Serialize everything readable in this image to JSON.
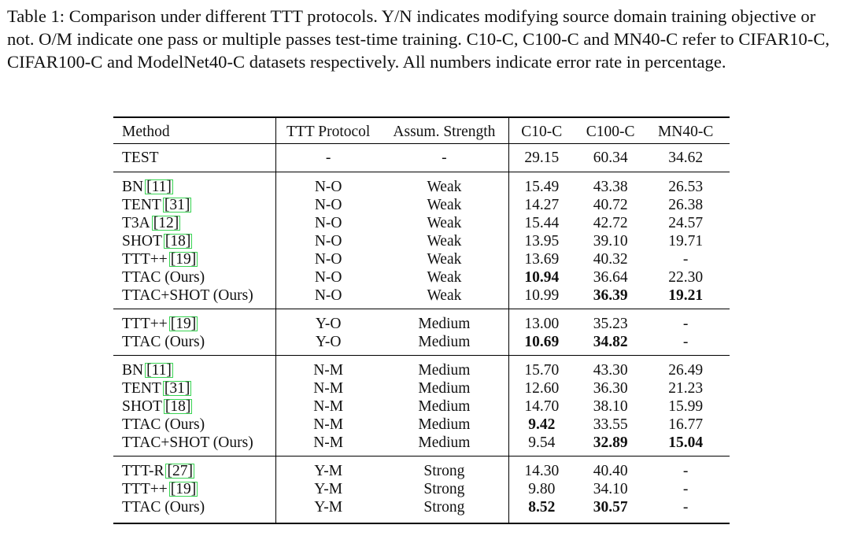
{
  "caption": "Table 1: Comparison under different TTT protocols. Y/N indicates modifying source domain training objective or not. O/M indicate one pass or multiple passes test-time training. C10-C, C100-C and MN40-C refer to CIFAR10-C, CIFAR100-C and ModelNet40-C datasets respectively. All numbers indicate error rate in percentage.",
  "headers": [
    "Method",
    "TTT Protocol",
    "Assum. Strength",
    "C10-C",
    "C100-C",
    "MN40-C"
  ],
  "groups": [
    [
      {
        "method": "TEST",
        "ref": "",
        "protocol": "-",
        "strength": "-",
        "c10": "29.15",
        "c100": "60.34",
        "mn40": "34.62",
        "bold": []
      }
    ],
    [
      {
        "method": "BN",
        "ref": "[11]",
        "protocol": "N-O",
        "strength": "Weak",
        "c10": "15.49",
        "c100": "43.38",
        "mn40": "26.53",
        "bold": []
      },
      {
        "method": "TENT",
        "ref": "[31]",
        "protocol": "N-O",
        "strength": "Weak",
        "c10": "14.27",
        "c100": "40.72",
        "mn40": "26.38",
        "bold": []
      },
      {
        "method": "T3A",
        "ref": "[12]",
        "protocol": "N-O",
        "strength": "Weak",
        "c10": "15.44",
        "c100": "42.72",
        "mn40": "24.57",
        "bold": []
      },
      {
        "method": "SHOT",
        "ref": "[18]",
        "protocol": "N-O",
        "strength": "Weak",
        "c10": "13.95",
        "c100": "39.10",
        "mn40": "19.71",
        "bold": []
      },
      {
        "method": "TTT++",
        "ref": "[19]",
        "protocol": "N-O",
        "strength": "Weak",
        "c10": "13.69",
        "c100": "40.32",
        "mn40": "-",
        "bold": []
      },
      {
        "method": "TTAC (Ours)",
        "ref": "",
        "protocol": "N-O",
        "strength": "Weak",
        "c10": "10.94",
        "c100": "36.64",
        "mn40": "22.30",
        "bold": [
          "c10"
        ]
      },
      {
        "method": "TTAC+SHOT (Ours)",
        "ref": "",
        "protocol": "N-O",
        "strength": "Weak",
        "c10": "10.99",
        "c100": "36.39",
        "mn40": "19.21",
        "bold": [
          "c100",
          "mn40"
        ]
      }
    ],
    [
      {
        "method": "TTT++",
        "ref": "[19]",
        "protocol": "Y-O",
        "strength": "Medium",
        "c10": "13.00",
        "c100": "35.23",
        "mn40": "-",
        "bold": []
      },
      {
        "method": "TTAC (Ours)",
        "ref": "",
        "protocol": "Y-O",
        "strength": "Medium",
        "c10": "10.69",
        "c100": "34.82",
        "mn40": "-",
        "bold": [
          "c10",
          "c100"
        ]
      }
    ],
    [
      {
        "method": "BN",
        "ref": "[11]",
        "protocol": "N-M",
        "strength": "Medium",
        "c10": "15.70",
        "c100": "43.30",
        "mn40": "26.49",
        "bold": []
      },
      {
        "method": "TENT",
        "ref": "[31]",
        "protocol": "N-M",
        "strength": "Medium",
        "c10": "12.60",
        "c100": "36.30",
        "mn40": "21.23",
        "bold": []
      },
      {
        "method": "SHOT",
        "ref": "[18]",
        "protocol": "N-M",
        "strength": "Medium",
        "c10": "14.70",
        "c100": "38.10",
        "mn40": "15.99",
        "bold": []
      },
      {
        "method": "TTAC (Ours)",
        "ref": "",
        "protocol": "N-M",
        "strength": "Medium",
        "c10": "9.42",
        "c100": "33.55",
        "mn40": "16.77",
        "bold": [
          "c10"
        ]
      },
      {
        "method": "TTAC+SHOT (Ours)",
        "ref": "",
        "protocol": "N-M",
        "strength": "Medium",
        "c10": "9.54",
        "c100": "32.89",
        "mn40": "15.04",
        "bold": [
          "c100",
          "mn40"
        ]
      }
    ],
    [
      {
        "method": "TTT-R",
        "ref": "[27]",
        "protocol": "Y-M",
        "strength": "Strong",
        "c10": "14.30",
        "c100": "40.40",
        "mn40": "-",
        "bold": []
      },
      {
        "method": "TTT++",
        "ref": "[19]",
        "protocol": "Y-M",
        "strength": "Strong",
        "c10": "9.80",
        "c100": "34.10",
        "mn40": "-",
        "bold": []
      },
      {
        "method": "TTAC (Ours)",
        "ref": "",
        "protocol": "Y-M",
        "strength": "Strong",
        "c10": "8.52",
        "c100": "30.57",
        "mn40": "-",
        "bold": [
          "c10",
          "c100"
        ]
      }
    ]
  ]
}
